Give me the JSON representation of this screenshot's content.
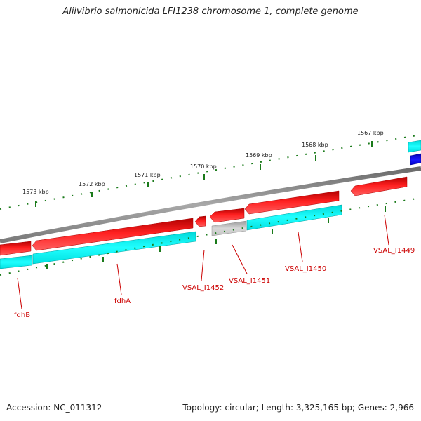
{
  "title": "Aliivibrio salmonicida LFI1238 chromosome 1, complete genome",
  "accession": "Accession: NC_011312",
  "topology": "Topology: circular; Length: 3,325,165 bp; Genes: 2,966",
  "kbp_ticks": [
    "1573 kbp",
    "1572 kbp",
    "1571 kbp",
    "1570 kbp",
    "1569 kbp",
    "1568 kbp",
    "1567 kbp"
  ],
  "genes": [
    "fdhB",
    "fdhA",
    "VSAL_I1452",
    "VSAL_I1451",
    "VSAL_I1450",
    "VSAL_I1449"
  ],
  "colors": {
    "forward_gene": "#ff0000",
    "cds": "#00ffff",
    "other_cds": "#c0c0c0",
    "backbone": "#808080",
    "tick": "#1a7a1a",
    "label": "#cc0000",
    "blue_feature": "#0000ff"
  }
}
